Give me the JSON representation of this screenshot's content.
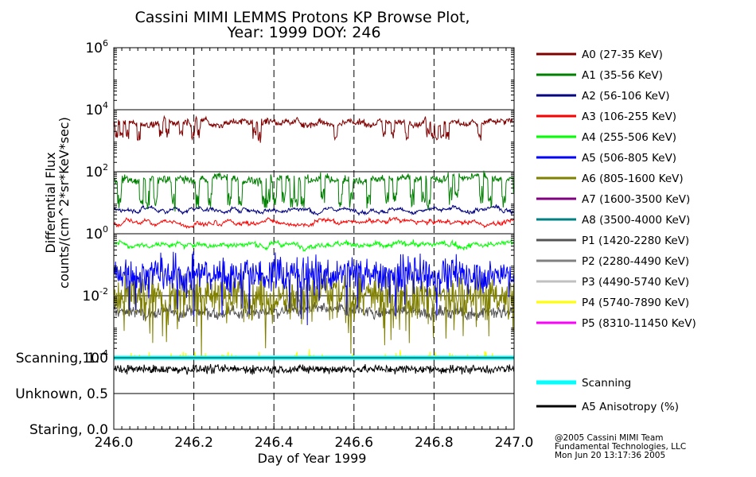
{
  "chart_data": {
    "type": "line",
    "title": "Cassini MIMI LEMMS Protons KP Browse Plot,",
    "subtitle": "Year: 1999 DOY: 246",
    "xlabel": "Day of Year 1999",
    "ylabel_line1": "Differential Flux",
    "ylabel_line2": "counts/(cm^2*sr*KeV*sec)",
    "xlim": [
      246.0,
      247.0
    ],
    "xticks": [
      "246.0",
      "246.2",
      "246.4",
      "246.6",
      "246.8",
      "247.0"
    ],
    "ylim_log10": [
      -4,
      6
    ],
    "yticks": [
      {
        "base": "10",
        "exp": "6"
      },
      {
        "base": "10",
        "exp": "4"
      },
      {
        "base": "10",
        "exp": "2"
      },
      {
        "base": "10",
        "exp": "0"
      },
      {
        "base": "10",
        "exp": "-2"
      },
      {
        "base": "10",
        "exp": "-4"
      }
    ],
    "scan_panel_labels": [
      "Scanning, 1.0",
      "Unknown, 0.5",
      "Staring, 0.0"
    ],
    "series": [
      {
        "name": "A0 (27-35 KeV)",
        "color": "#800000",
        "typical_value": 4000
      },
      {
        "name": "A1 (35-56 KeV)",
        "color": "#008000",
        "typical_value": 60
      },
      {
        "name": "A2 (56-106 KeV)",
        "color": "#000080",
        "typical_value": 6
      },
      {
        "name": "A3 (106-255 KeV)",
        "color": "#ff0000",
        "typical_value": 2.3
      },
      {
        "name": "A4 (255-506 KeV)",
        "color": "#00ff00",
        "typical_value": 0.45
      },
      {
        "name": "A5 (506-805 KeV)",
        "color": "#0000ff",
        "typical_value": 0.05
      },
      {
        "name": "A6 (805-1600 KeV)",
        "color": "#808000",
        "typical_value": 0.01
      },
      {
        "name": "A7 (1600-3500 KeV)",
        "color": "#800080",
        "typical_value": null
      },
      {
        "name": "A8 (3500-4000 KeV)",
        "color": "#008080",
        "typical_value": null
      },
      {
        "name": "P1 (1420-2280 KeV)",
        "color": "#555555",
        "typical_value": 0.003
      },
      {
        "name": "P2 (2280-4490 KeV)",
        "color": "#808080",
        "typical_value": null
      },
      {
        "name": "P3 (4490-5740 KeV)",
        "color": "#c0c0c0",
        "typical_value": null
      },
      {
        "name": "P4 (5740-7890 KeV)",
        "color": "#ffff00",
        "typical_value": 0.0001
      },
      {
        "name": "P5 (8310-11450 KeV)",
        "color": "#ff00ff",
        "typical_value": null
      }
    ],
    "scan_series": [
      {
        "name": "Scanning",
        "color": "#00ffff",
        "value": 1.0
      },
      {
        "name": "A5 Anisotropy (%)",
        "color": "#000000"
      }
    ]
  },
  "credits": [
    "@2005 Cassini MIMI Team",
    "Fundamental Technologies, LLC",
    "Mon Jun 20 13:17:36 2005"
  ]
}
